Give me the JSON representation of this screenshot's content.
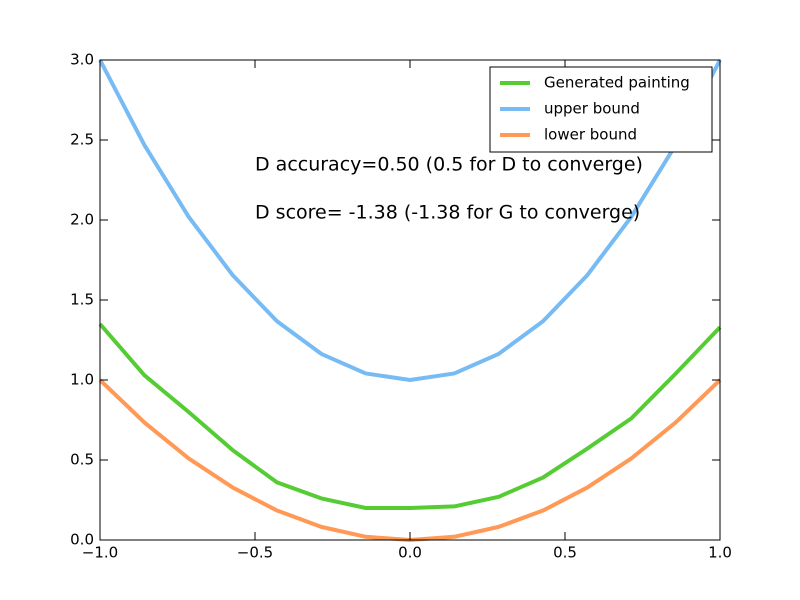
{
  "chart_data": {
    "type": "line",
    "x": [
      -1,
      -0.857,
      -0.714,
      -0.571,
      -0.429,
      -0.286,
      -0.143,
      0,
      0.143,
      0.286,
      0.429,
      0.571,
      0.714,
      0.857,
      1
    ],
    "series": [
      {
        "name": "Generated painting",
        "color": "#55cc33",
        "values": [
          1.35,
          1.03,
          0.8,
          0.56,
          0.36,
          0.26,
          0.2,
          0.2,
          0.21,
          0.27,
          0.39,
          0.57,
          0.76,
          1.04,
          1.33
        ]
      },
      {
        "name": "upper bound",
        "color": "#77bbf5",
        "values": [
          3.0,
          2.469,
          2.02,
          1.653,
          1.367,
          1.163,
          1.041,
          1.0,
          1.041,
          1.163,
          1.367,
          1.653,
          2.02,
          2.469,
          3.0
        ]
      },
      {
        "name": "lower bound",
        "color": "#ff9955",
        "values": [
          1.0,
          0.735,
          0.51,
          0.327,
          0.184,
          0.082,
          0.02,
          0.0,
          0.02,
          0.082,
          0.184,
          0.327,
          0.51,
          0.735,
          1.0
        ]
      }
    ],
    "annotations": [
      "D accuracy=0.50 (0.5 for D to converge)",
      "D score= -1.38 (-1.38 for G to converge)"
    ],
    "xlim": [
      -1,
      1
    ],
    "ylim": [
      0,
      3
    ],
    "xticks": [
      {
        "value": -1,
        "label": "−1.0"
      },
      {
        "value": -0.5,
        "label": "−0.5"
      },
      {
        "value": 0,
        "label": "0.0"
      },
      0.5,
      {
        "value": 1,
        "label": "1.0"
      }
    ],
    "yticks": [
      {
        "value": 0,
        "label": "0.0"
      },
      0.5,
      {
        "value": 1,
        "label": "1.0"
      },
      1.5,
      {
        "value": 2,
        "label": "2.0"
      },
      2.5,
      {
        "value": 3,
        "label": "3.0"
      }
    ],
    "legend": "upper right",
    "grid": false
  }
}
